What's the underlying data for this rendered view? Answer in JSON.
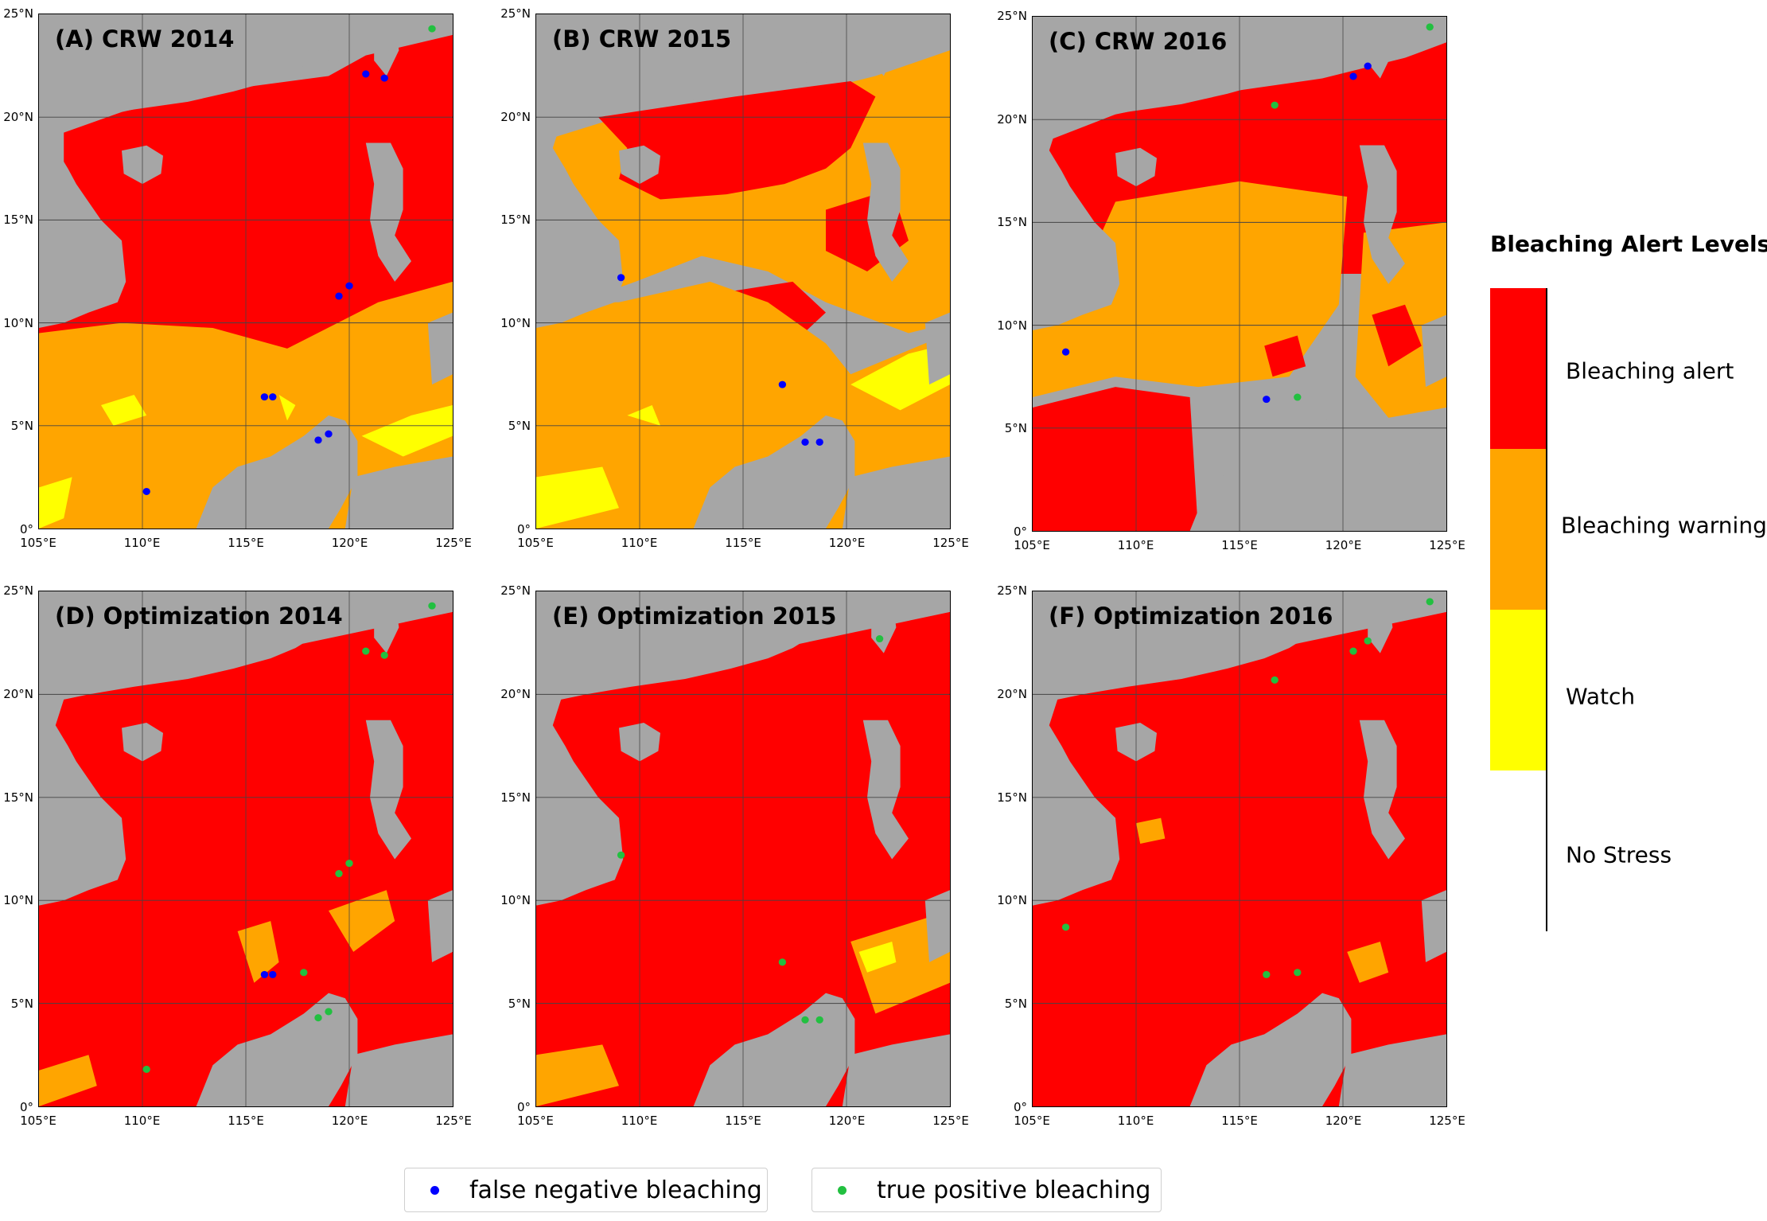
{
  "panels": [
    {
      "title": "(A) CRW 2014",
      "x_ticks": [
        "105°E",
        "110°E",
        "115°E",
        "120°E",
        "125°E"
      ],
      "y_ticks": [
        "0°",
        "5°N",
        "10°N",
        "15°N",
        "20°N",
        "25°N"
      ]
    },
    {
      "title": "(B) CRW 2015",
      "x_ticks": [
        "105°E",
        "110°E",
        "115°E",
        "120°E",
        "125°E"
      ],
      "y_ticks": [
        "0°",
        "5°N",
        "10°N",
        "15°N",
        "20°N",
        "25°N"
      ]
    },
    {
      "title": "(C) CRW 2016",
      "x_ticks": [
        "105°E",
        "110°E",
        "115°E",
        "120°E",
        "125°E"
      ],
      "y_ticks": [
        "0°",
        "5°N",
        "10°N",
        "15°N",
        "20°N",
        "25°N"
      ]
    },
    {
      "title": "(D) Optimization 2014",
      "x_ticks": [
        "105°E",
        "110°E",
        "115°E",
        "120°E",
        "125°E"
      ],
      "y_ticks": [
        "0°",
        "5°N",
        "10°N",
        "15°N",
        "20°N",
        "25°N"
      ]
    },
    {
      "title": "(E) Optimization 2015",
      "x_ticks": [
        "105°E",
        "110°E",
        "115°E",
        "120°E",
        "125°E"
      ],
      "y_ticks": [
        "0°",
        "5°N",
        "10°N",
        "15°N",
        "20°N",
        "25°N"
      ]
    },
    {
      "title": "(F) Optimization 2016",
      "x_ticks": [
        "105°E",
        "110°E",
        "115°E",
        "120°E",
        "125°E"
      ],
      "y_ticks": [
        "0°",
        "5°N",
        "10°N",
        "15°N",
        "20°N",
        "25°N"
      ]
    }
  ],
  "legend": {
    "title": "Bleaching Alert Levels",
    "levels": [
      {
        "label": "Bleaching alert",
        "color": "#ff0000"
      },
      {
        "label": "Bleaching warning",
        "color": "#ffa500"
      },
      {
        "label": "Watch",
        "color": "#ffff00"
      },
      {
        "label": "No Stress",
        "color": "#ffffff"
      }
    ]
  },
  "colors": {
    "land": "#a6a6a6",
    "alert": "#ff0000",
    "warning": "#ffa500",
    "watch": "#ffff00",
    "false_negative": "#0000ff",
    "true_positive": "#22c040"
  },
  "point_legend": {
    "false_negative": "false negative bleaching",
    "true_positive": "true positive bleaching"
  }
}
